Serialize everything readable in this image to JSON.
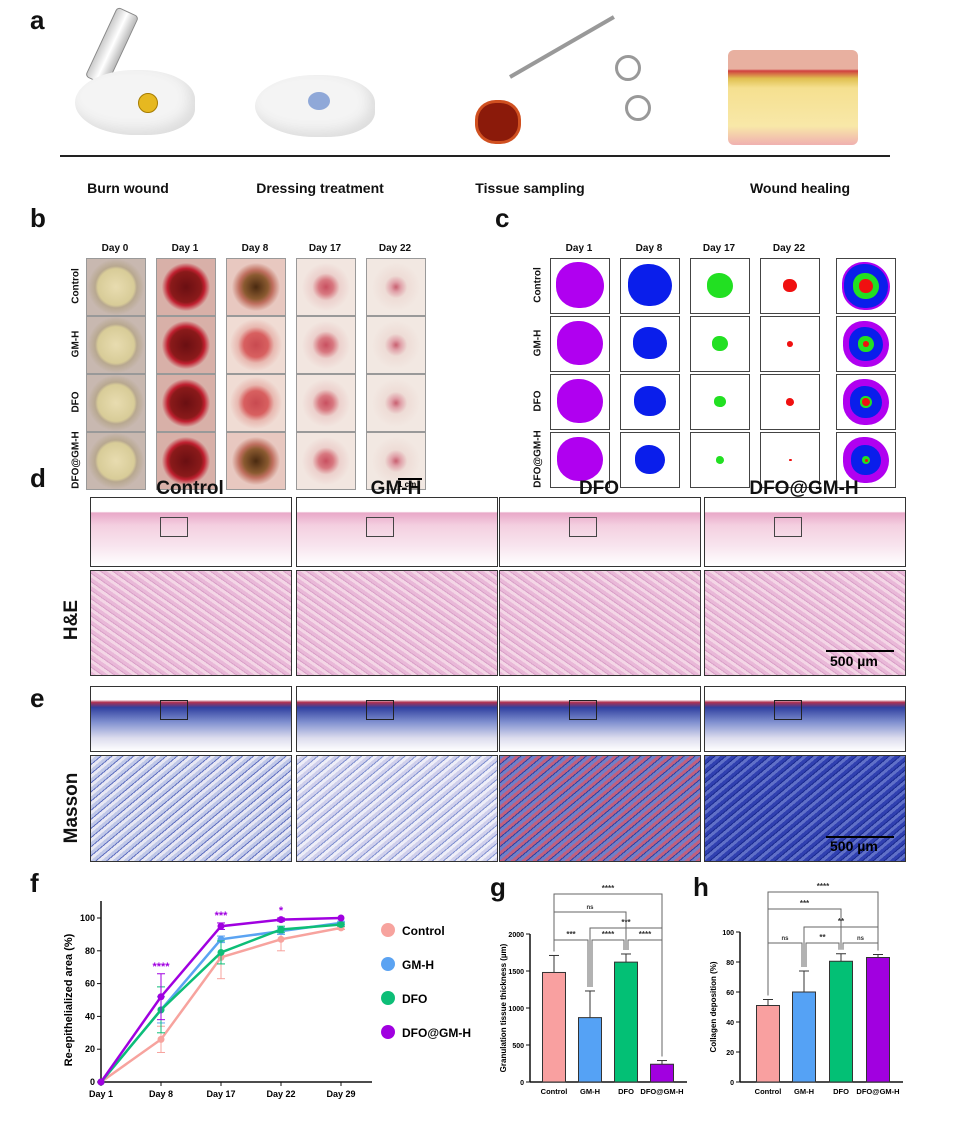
{
  "panel_labels": {
    "a": "a",
    "b": "b",
    "c": "c",
    "d": "d",
    "e": "e",
    "f": "f",
    "g": "g",
    "h": "h"
  },
  "panel_a": {
    "steps": [
      "Burn wound",
      "Dressing treatment",
      "Tissue sampling",
      "Wound healing"
    ]
  },
  "panel_b": {
    "days": [
      "Day 0",
      "Day 1",
      "Day 8",
      "Day 17",
      "Day 22"
    ],
    "groups": [
      "Control",
      "GM-H",
      "DFO",
      "DFO@GM-H"
    ],
    "scale_bar": "1 cm"
  },
  "panel_c": {
    "days": [
      "Day 1",
      "Day 8",
      "Day 17",
      "Day 22"
    ],
    "groups": [
      "Control",
      "GM-H",
      "DFO",
      "DFO@GM-H"
    ],
    "colors": {
      "day1": "#B000F0",
      "day8": "#0A1EEB",
      "day17": "#22E022",
      "day22": "#F01010"
    }
  },
  "panel_d": {
    "groups": [
      "Control",
      "GM-H",
      "DFO",
      "DFO@GM-H"
    ],
    "stain": "H&E",
    "scale_bar": "500 µm"
  },
  "panel_e": {
    "stain": "Masson",
    "scale_bar": "500 µm"
  },
  "chart_data": [
    {
      "type": "line",
      "panel": "f",
      "xlabel": "",
      "ylabel": "Re-epithelialized area (%)",
      "categories": [
        "Day 1",
        "Day 8",
        "Day 17",
        "Day 22",
        "Day 29"
      ],
      "ylim": [
        0,
        100
      ],
      "yticks": [
        0,
        20,
        40,
        60,
        80,
        100
      ],
      "series": [
        {
          "name": "Control",
          "color": "#F7A39E",
          "values": [
            0,
            26,
            76,
            87,
            94
          ],
          "errors": [
            0,
            8,
            13,
            7,
            1
          ]
        },
        {
          "name": "GM-H",
          "color": "#5BA3F2",
          "values": [
            0,
            44,
            87,
            92,
            97
          ],
          "errors": [
            0,
            8,
            2,
            2,
            1
          ]
        },
        {
          "name": "DFO",
          "color": "#0DBE77",
          "values": [
            0,
            44,
            79,
            93,
            96
          ],
          "errors": [
            0,
            14,
            7,
            2,
            1
          ]
        },
        {
          "name": "DFO@GM-H",
          "color": "#A000E0",
          "values": [
            0,
            52,
            95,
            99,
            100
          ],
          "errors": [
            0,
            14,
            2,
            1,
            0
          ]
        }
      ],
      "significance": [
        {
          "x": "Day 8",
          "label": "****"
        },
        {
          "x": "Day 17",
          "label": "***"
        },
        {
          "x": "Day 22",
          "label": "*"
        }
      ],
      "legend": "right"
    },
    {
      "type": "bar",
      "panel": "g",
      "ylabel": "Granulation tissue thickness (µm)",
      "categories": [
        "Control",
        "GM-H",
        "DFO",
        "DFO@GM-H"
      ],
      "values": [
        1480,
        870,
        1620,
        240
      ],
      "errors": [
        230,
        360,
        110,
        50
      ],
      "colors": [
        "#F9A0A0",
        "#55A2F5",
        "#03C075",
        "#A100E0"
      ],
      "ylim": [
        0,
        2000
      ],
      "yticks": [
        0,
        500,
        1000,
        1500,
        2000
      ],
      "comparisons": [
        {
          "a": 0,
          "b": 1,
          "label": "***"
        },
        {
          "a": 1,
          "b": 2,
          "label": "****"
        },
        {
          "a": 2,
          "b": 3,
          "label": "****"
        },
        {
          "a": 1,
          "b": 3,
          "label": "***"
        },
        {
          "a": 0,
          "b": 2,
          "label": "ns"
        },
        {
          "a": 0,
          "b": 3,
          "label": "****"
        }
      ]
    },
    {
      "type": "bar",
      "panel": "h",
      "ylabel": "Collagen deposition (%)",
      "categories": [
        "Control",
        "GM-H",
        "DFO",
        "DFO@GM-H"
      ],
      "values": [
        51,
        60,
        80.5,
        83
      ],
      "errors": [
        4,
        14,
        5,
        2
      ],
      "colors": [
        "#F9A0A0",
        "#55A2F5",
        "#03C075",
        "#A100E0"
      ],
      "ylim": [
        0,
        100
      ],
      "yticks": [
        0,
        20,
        40,
        60,
        80,
        100
      ],
      "comparisons": [
        {
          "a": 0,
          "b": 1,
          "label": "ns"
        },
        {
          "a": 1,
          "b": 2,
          "label": "**"
        },
        {
          "a": 2,
          "b": 3,
          "label": "ns"
        },
        {
          "a": 1,
          "b": 3,
          "label": "**"
        },
        {
          "a": 0,
          "b": 2,
          "label": "***"
        },
        {
          "a": 0,
          "b": 3,
          "label": "****"
        }
      ]
    }
  ]
}
